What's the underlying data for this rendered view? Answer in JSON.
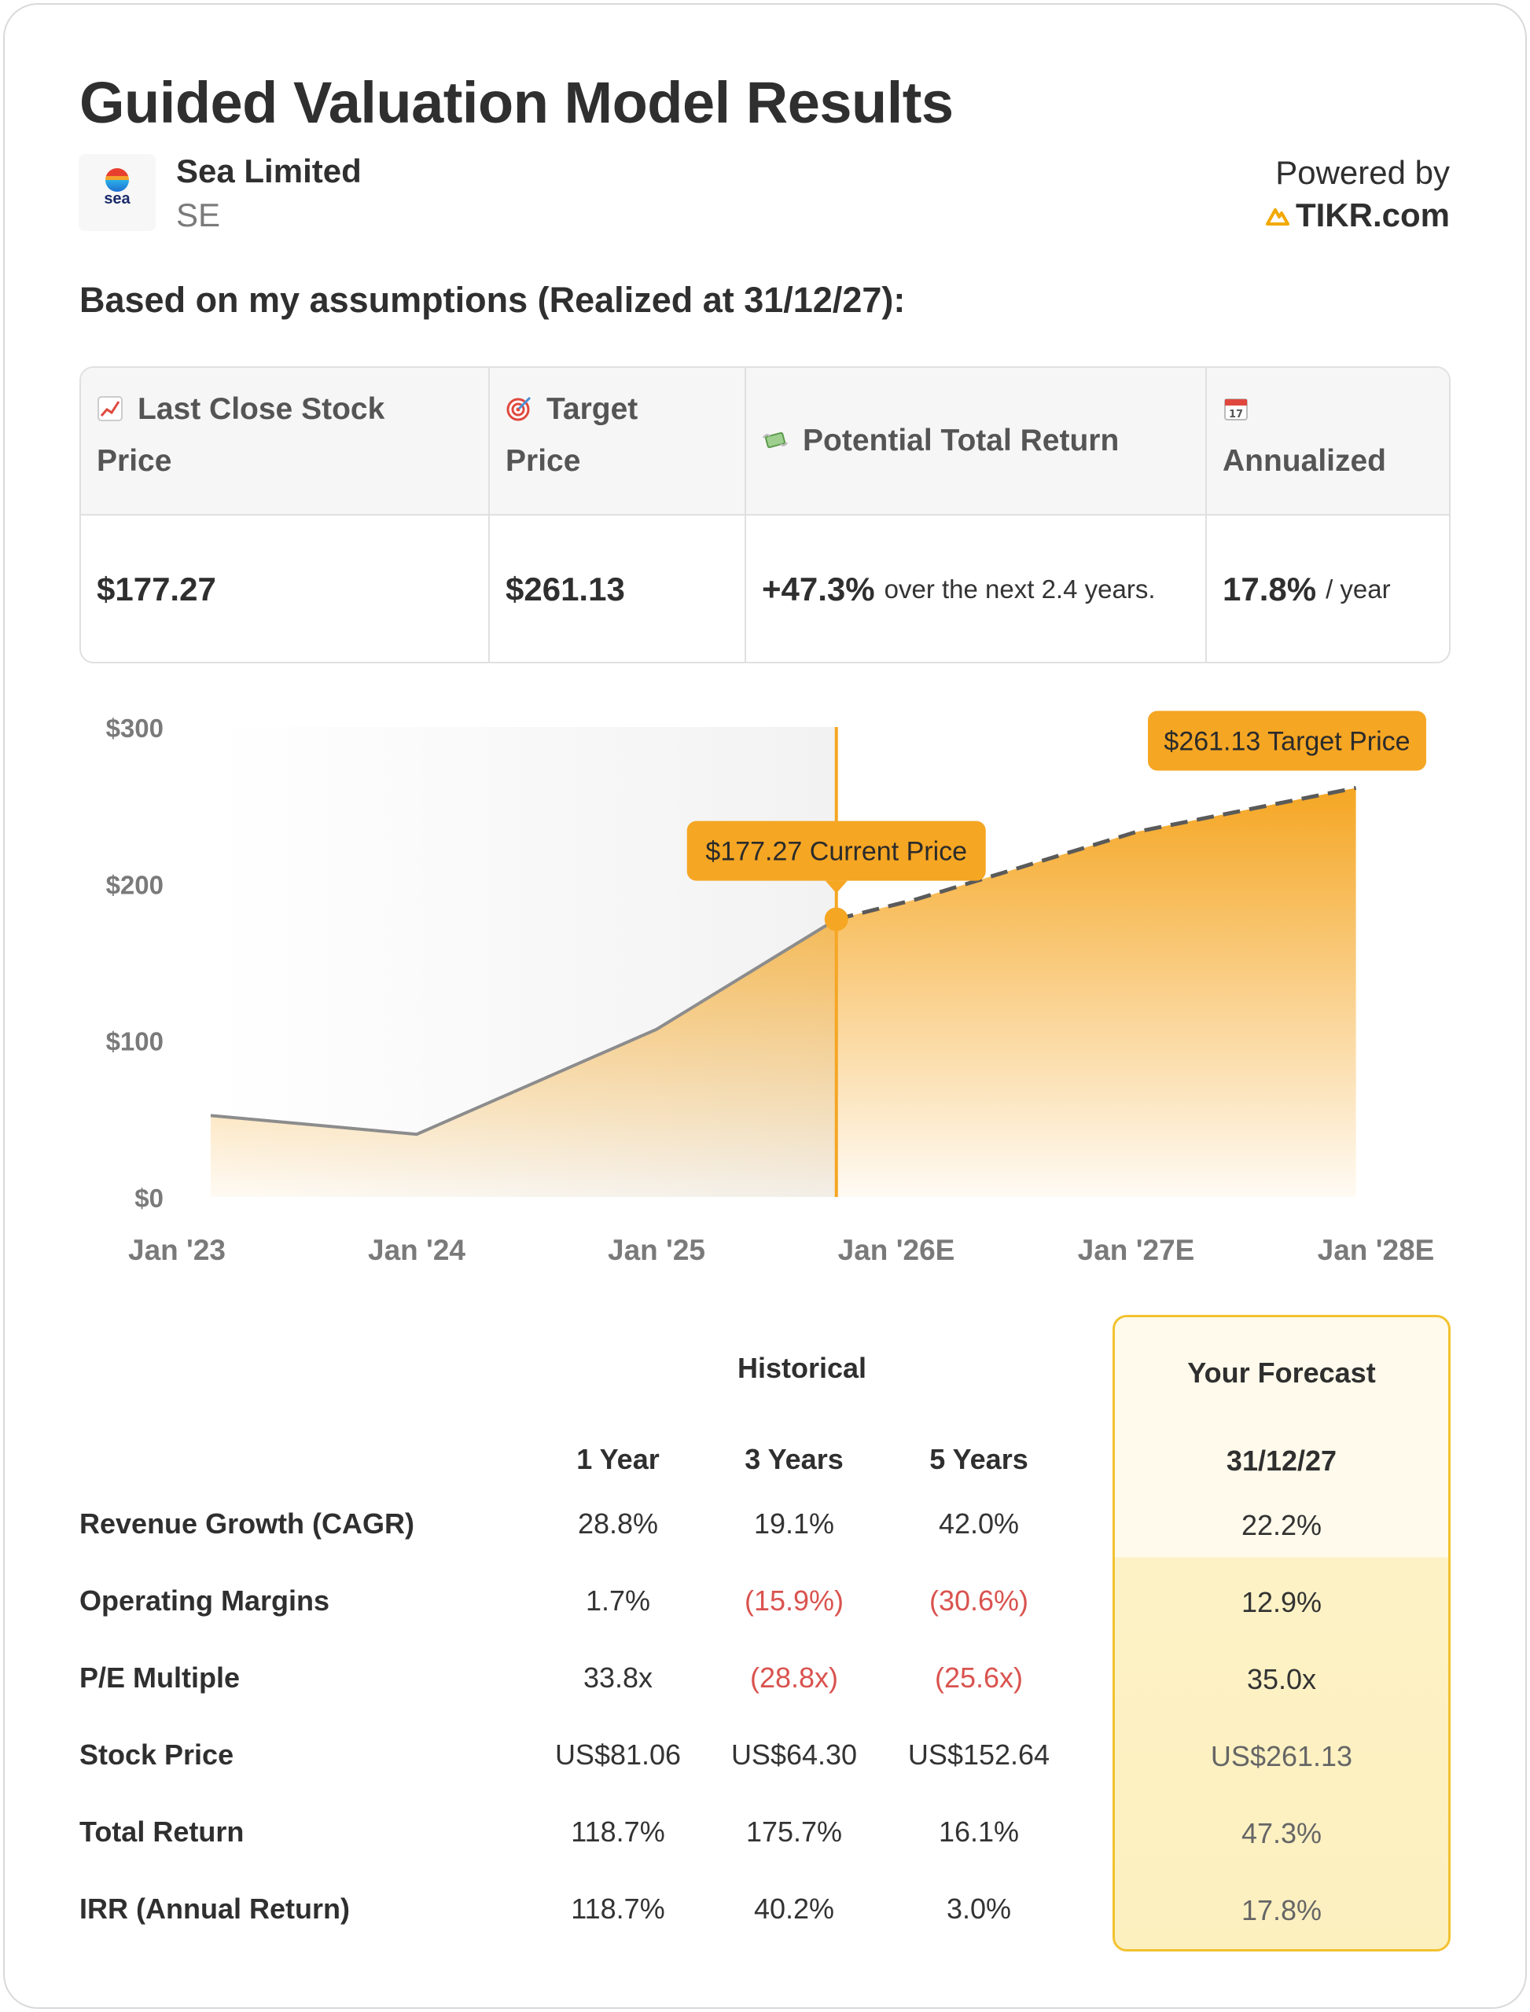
{
  "header": {
    "title": "Guided Valuation Model Results",
    "company_name": "Sea Limited",
    "ticker": "SE",
    "logo_text": "sea",
    "powered_by": "Powered by",
    "brand": "TIKR.com",
    "brand_color": "#f2a900"
  },
  "assumptions_heading": "Based on my assumptions (Realized at 31/12/27):",
  "summary": {
    "headers": [
      {
        "icon": "chart-increasing-icon",
        "line1": "Last Close Stock",
        "line2": "Price"
      },
      {
        "icon": "target-icon",
        "line1": "Target",
        "line2": "Price"
      },
      {
        "icon": "money-wings-icon",
        "line1": "Potential Total Return",
        "line2": ""
      },
      {
        "icon": "calendar-icon",
        "line1": "",
        "line2": "Annualized"
      }
    ],
    "last_close": "$177.27",
    "target": "$261.13",
    "total_return": "+47.3%",
    "total_return_note": "over the next 2.4 years.",
    "annualized": "17.8%",
    "annualized_note": "/ year"
  },
  "chart_data": {
    "type": "area",
    "x_ticks": [
      "Jan '23",
      "Jan '24",
      "Jan '25",
      "Jan '26E",
      "Jan '27E",
      "Jan '28E"
    ],
    "y_ticks": [
      "$300",
      "$200",
      "$100",
      "$0"
    ],
    "ylim": [
      0,
      300
    ],
    "historical": {
      "x": [
        "2023-01",
        "2024-01",
        "2025-01",
        "2025-10"
      ],
      "y": [
        52,
        40,
        107,
        177.27
      ]
    },
    "forecast": {
      "x": [
        "2025-10",
        "2026-02",
        "2027-01",
        "2027-12"
      ],
      "y": [
        177.27,
        190,
        233,
        261.13
      ]
    },
    "annotations": [
      {
        "label": "$177.27 Current Price",
        "x": "2025-10",
        "y": 177.27
      },
      {
        "label": "$261.13 Target Price",
        "x": "2027-12",
        "y": 261.13
      }
    ],
    "colors": {
      "accent": "#f5a623",
      "history_line": "#8c8c8c",
      "forecast_line": "#5a5a5a"
    }
  },
  "table": {
    "historical_label": "Historical",
    "forecast_label": "Your Forecast",
    "columns": [
      "1 Year",
      "3 Years",
      "5 Years"
    ],
    "forecast_date": "31/12/27",
    "rows": [
      {
        "label": "Revenue Growth (CAGR)",
        "values": [
          "28.8%",
          "19.1%",
          "42.0%"
        ],
        "negative": [
          false,
          false,
          false
        ],
        "forecast": "22.2%"
      },
      {
        "label": "Operating Margins",
        "values": [
          "1.7%",
          "(15.9%)",
          "(30.6%)"
        ],
        "negative": [
          false,
          true,
          true
        ],
        "forecast": "12.9%"
      },
      {
        "label": "P/E Multiple",
        "values": [
          "33.8x",
          "(28.8x)",
          "(25.6x)"
        ],
        "negative": [
          false,
          true,
          true
        ],
        "forecast": "35.0x"
      },
      {
        "label": "Stock Price",
        "values": [
          "US$81.06",
          "US$64.30",
          "US$152.64"
        ],
        "negative": [
          false,
          false,
          false
        ],
        "forecast": "US$261.13"
      },
      {
        "label": "Total Return",
        "values": [
          "118.7%",
          "175.7%",
          "16.1%"
        ],
        "negative": [
          false,
          false,
          false
        ],
        "forecast": "47.3%"
      },
      {
        "label": "IRR (Annual Return)",
        "values": [
          "118.7%",
          "40.2%",
          "3.0%"
        ],
        "negative": [
          false,
          false,
          false
        ],
        "forecast": "17.8%"
      }
    ]
  }
}
